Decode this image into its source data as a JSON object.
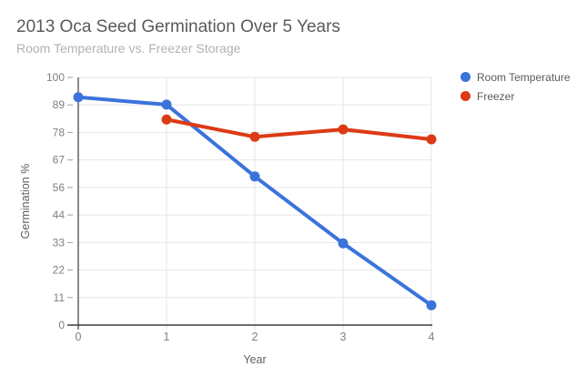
{
  "chart_data": {
    "type": "line",
    "title": "2013 Oca Seed Germination Over 5 Years",
    "subtitle": "Room Temperature vs. Freezer Storage",
    "xlabel": "Year",
    "ylabel": "Germination %",
    "x": [
      0,
      1,
      2,
      3,
      4
    ],
    "xtick_labels": [
      "0",
      "1",
      "2",
      "3",
      "4"
    ],
    "ytick_labels": [
      "0",
      "11",
      "22",
      "33",
      "44",
      "56",
      "67",
      "78",
      "89",
      "100"
    ],
    "xlim": [
      0,
      4
    ],
    "ylim": [
      0,
      100
    ],
    "grid": true,
    "legend_position": "top-right",
    "marker": "circle",
    "series": [
      {
        "name": "Room Temperature",
        "color": "#3b73db",
        "values": [
          92,
          89,
          60,
          33,
          8
        ]
      },
      {
        "name": "Freezer",
        "color": "#dc3a16",
        "values": [
          null,
          83,
          76,
          79,
          75
        ]
      }
    ],
    "palette": {
      "background": "#ffffff",
      "grid": "#e6e6e6",
      "axis": "#3d3d3d",
      "tick_mark": "#9e9e9e",
      "tick_label": "#808080",
      "axis_title": "#616161",
      "title": "#5a5a5a",
      "subtitle": "#b2b2b2",
      "legend_label": "#5a5a5a"
    }
  }
}
